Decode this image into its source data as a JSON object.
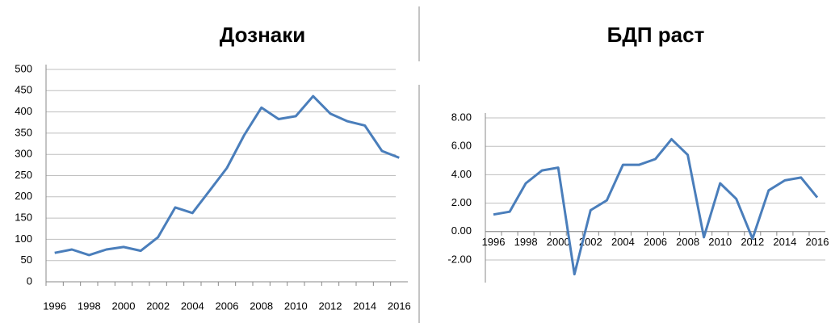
{
  "chart_data": [
    {
      "type": "line",
      "title": "Дознаки",
      "categories": [
        "1996",
        null,
        "1998",
        null,
        "2000",
        null,
        "2002",
        null,
        "2004",
        null,
        "2006",
        null,
        "2008",
        null,
        "2010",
        null,
        "2012",
        null,
        "2014",
        null,
        "2016"
      ],
      "series": [
        {
          "name": "Дознаки",
          "color": "#4a7ebb",
          "values": [
            68,
            76,
            63,
            76,
            82,
            73,
            105,
            175,
            162,
            215,
            268,
            345,
            410,
            383,
            390,
            437,
            396,
            378,
            368,
            308,
            292
          ]
        }
      ],
      "ylim": [
        0,
        500
      ],
      "yticks": [
        0,
        50,
        100,
        150,
        200,
        250,
        300,
        350,
        400,
        450,
        500
      ],
      "grid": true
    },
    {
      "type": "line",
      "title": "БДП раст",
      "categories": [
        "1996",
        null,
        "1998",
        null,
        "2000",
        null,
        "2002",
        null,
        "2004",
        null,
        "2006",
        null,
        "2008",
        null,
        "2010",
        null,
        "2012",
        null,
        "2014",
        null,
        "2016"
      ],
      "series": [
        {
          "name": "БДП раст",
          "color": "#4a7ebb",
          "values": [
            1.2,
            1.4,
            3.4,
            4.3,
            4.5,
            -3.0,
            1.5,
            2.2,
            4.7,
            4.7,
            5.1,
            6.5,
            5.4,
            -0.4,
            3.4,
            2.3,
            -0.5,
            2.9,
            3.6,
            3.8,
            2.4
          ]
        }
      ],
      "ylim": [
        -2,
        8
      ],
      "yticks": [
        {
          "value": -2,
          "label": "-2.00"
        },
        {
          "value": 0,
          "label": "0.00"
        },
        {
          "value": 2,
          "label": "2.00"
        },
        {
          "value": 4,
          "label": "4.00"
        },
        {
          "value": 6,
          "label": "6.00"
        },
        {
          "value": 8,
          "label": "8.00"
        }
      ],
      "grid": true
    }
  ]
}
